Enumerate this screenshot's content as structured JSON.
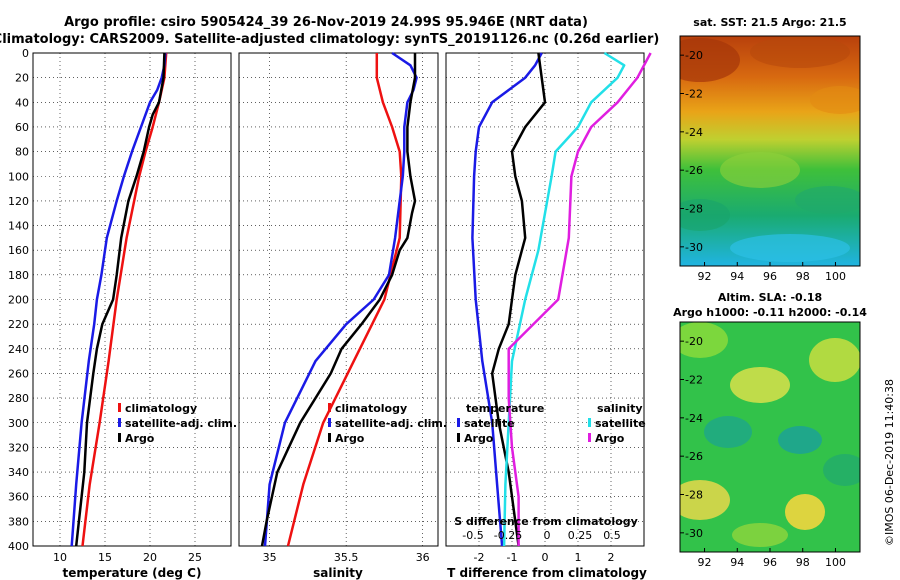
{
  "header": {
    "line1": "Argo profile: csiro 5905424_39 26-Nov-2019 24.99S 95.946E (NRT data)",
    "line2": "Climatology: CARS2009. Satellite-adjusted climatology: synTS_20191126.nc (0.26d earlier)"
  },
  "colors": {
    "climatology": "#ee1111",
    "satellite": "#1a1ae6",
    "argo": "#000000",
    "salinity_satellite": "#22e0e8",
    "salinity_argo": "#e01ee0"
  },
  "sst_panel": {
    "title": "sat. SST: 21.5 Argo: 21.5"
  },
  "sla_panel": {
    "title1": "Altim. SLA: -0.18",
    "title2": "Argo h1000: -0.11 h2000: -0.14"
  },
  "credit": "©IMOS 06-Dec-2019 11:40:38",
  "chart_data": [
    {
      "type": "line",
      "id": "temperature",
      "xlabel": "temperature (deg C)",
      "ylabel": "depth",
      "xlim": [
        7,
        29
      ],
      "ylim": [
        400,
        0
      ],
      "xticks": [
        10,
        15,
        20,
        25
      ],
      "yticks": [
        0,
        20,
        40,
        60,
        80,
        100,
        120,
        140,
        160,
        180,
        200,
        220,
        240,
        260,
        280,
        300,
        320,
        340,
        360,
        380,
        400
      ],
      "legend": [
        "climatology",
        "satellite-adj. clim.",
        "Argo"
      ],
      "series": [
        {
          "name": "climatology",
          "depth": [
            0,
            20,
            40,
            60,
            80,
            100,
            150,
            200,
            250,
            300,
            350,
            400
          ],
          "values": [
            21.8,
            21.6,
            21.0,
            20.3,
            19.5,
            18.8,
            17.4,
            16.3,
            15.4,
            14.4,
            13.3,
            12.5
          ]
        },
        {
          "name": "satellite-adj. clim.",
          "depth": [
            0,
            10,
            20,
            30,
            40,
            60,
            80,
            100,
            120,
            150,
            180,
            200,
            220,
            250,
            300,
            350,
            400
          ],
          "values": [
            21.7,
            21.6,
            21.3,
            20.8,
            20.0,
            19.0,
            18.0,
            17.1,
            16.3,
            15.2,
            14.6,
            14.1,
            13.8,
            13.2,
            12.4,
            11.8,
            11.3
          ]
        },
        {
          "name": "Argo",
          "depth": [
            0,
            20,
            40,
            50,
            60,
            80,
            100,
            120,
            150,
            180,
            200,
            220,
            240,
            260,
            300,
            340,
            380,
            400
          ],
          "values": [
            21.6,
            21.5,
            21.0,
            20.3,
            19.9,
            19.3,
            18.5,
            17.6,
            16.8,
            16.3,
            15.9,
            14.7,
            14.1,
            13.7,
            13.0,
            12.7,
            12.1,
            11.8
          ]
        }
      ]
    },
    {
      "type": "line",
      "id": "salinity",
      "xlabel": "salinity",
      "ylabel": "depth",
      "xlim": [
        34.8,
        36.1
      ],
      "ylim": [
        400,
        0
      ],
      "xticks": [
        35,
        35.5,
        36
      ],
      "yticks": [
        0,
        20,
        40,
        60,
        80,
        100,
        120,
        140,
        160,
        180,
        200,
        220,
        240,
        260,
        280,
        300,
        320,
        340,
        360,
        380,
        400
      ],
      "legend": [
        "climatology",
        "satellite-adj. clim.",
        "Argo"
      ],
      "series": [
        {
          "name": "climatology",
          "depth": [
            0,
            20,
            40,
            60,
            80,
            100,
            150,
            200,
            250,
            300,
            350,
            400
          ],
          "values": [
            35.7,
            35.7,
            35.74,
            35.8,
            35.85,
            35.86,
            35.85,
            35.75,
            35.55,
            35.35,
            35.22,
            35.12
          ]
        },
        {
          "name": "satellite-adj. clim.",
          "depth": [
            0,
            10,
            20,
            30,
            40,
            60,
            80,
            100,
            120,
            150,
            180,
            200,
            220,
            250,
            300,
            350,
            400
          ],
          "values": [
            35.8,
            35.92,
            35.96,
            35.94,
            35.9,
            35.88,
            35.88,
            35.87,
            35.85,
            35.82,
            35.78,
            35.68,
            35.5,
            35.3,
            35.1,
            35.0,
            34.97
          ]
        },
        {
          "name": "Argo",
          "depth": [
            0,
            20,
            40,
            60,
            80,
            100,
            120,
            130,
            150,
            160,
            180,
            200,
            220,
            240,
            260,
            300,
            340,
            380,
            400
          ],
          "values": [
            35.95,
            35.95,
            35.92,
            35.9,
            35.9,
            35.92,
            35.95,
            35.93,
            35.9,
            35.85,
            35.8,
            35.72,
            35.6,
            35.47,
            35.4,
            35.2,
            35.05,
            34.98,
            34.95
          ]
        }
      ]
    },
    {
      "type": "line",
      "id": "difference",
      "xlabel": "T difference from climatology",
      "x2label": "S difference from climatology",
      "xlim": [
        -3,
        3
      ],
      "ylim": [
        400,
        0
      ],
      "xticks": [
        -2,
        -1,
        0,
        1,
        2
      ],
      "x2ticks": [
        -0.5,
        -0.25,
        0,
        0.25,
        0.5
      ],
      "yticks": [
        0,
        20,
        40,
        60,
        80,
        100,
        120,
        140,
        160,
        180,
        200,
        220,
        240,
        260,
        280,
        300,
        320,
        340,
        360,
        380,
        400
      ],
      "legend_temperature_title": "temperature",
      "legend_salinity_title": "salinity",
      "legend_temperature": [
        "satellite",
        "Argo"
      ],
      "legend_salinity": [
        "satellite",
        "Argo"
      ],
      "series": [
        {
          "name": "temperature satellite",
          "depth": [
            0,
            10,
            20,
            30,
            40,
            60,
            80,
            100,
            150,
            200,
            250,
            300,
            350,
            400
          ],
          "values": [
            -0.1,
            -0.3,
            -0.6,
            -1.1,
            -1.6,
            -2.0,
            -2.1,
            -2.15,
            -2.2,
            -2.1,
            -1.9,
            -1.6,
            -1.45,
            -1.3
          ]
        },
        {
          "name": "temperature Argo",
          "depth": [
            0,
            20,
            40,
            60,
            80,
            100,
            120,
            150,
            180,
            200,
            220,
            240,
            260,
            300,
            340,
            380,
            400
          ],
          "values": [
            -0.2,
            -0.1,
            0.0,
            -0.6,
            -1.0,
            -0.9,
            -0.7,
            -0.6,
            -0.9,
            -1.0,
            -1.1,
            -1.4,
            -1.6,
            -1.4,
            -1.1,
            -0.9,
            -0.8
          ]
        },
        {
          "name": "salinity satellite",
          "depth": [
            0,
            10,
            20,
            40,
            60,
            80,
            100,
            130,
            160,
            200,
            250,
            300,
            350,
            400
          ],
          "values": [
            0.45,
            0.6,
            0.55,
            0.35,
            0.25,
            0.08,
            0.05,
            0.0,
            -0.05,
            -0.15,
            -0.25,
            -0.3,
            -0.35,
            -0.37
          ]
        },
        {
          "name": "salinity Argo",
          "depth": [
            0,
            20,
            40,
            60,
            80,
            100,
            150,
            200,
            240,
            280,
            320,
            360,
            400
          ],
          "values": [
            0.8,
            0.7,
            0.55,
            0.35,
            0.25,
            0.2,
            0.18,
            0.1,
            -0.3,
            -0.3,
            -0.25,
            -0.2,
            -0.2
          ]
        }
      ]
    },
    {
      "type": "heatmap",
      "id": "sst-map",
      "title": "sat. SST: 21.5 Argo: 21.5",
      "xticks": [
        92,
        94,
        96,
        98,
        100
      ],
      "yticks": [
        -20,
        -22,
        -24,
        -26,
        -28,
        -30
      ],
      "xlim": [
        90.5,
        101.5
      ],
      "ylim": [
        -31,
        -19
      ]
    },
    {
      "type": "heatmap",
      "id": "sla-map",
      "title": "Altim. SLA: -0.18",
      "subtitle": "Argo h1000: -0.11 h2000: -0.14",
      "xticks": [
        92,
        94,
        96,
        98,
        100
      ],
      "yticks": [
        -20,
        -22,
        -24,
        -26,
        -28,
        -30
      ],
      "xlim": [
        90.5,
        101.5
      ],
      "ylim": [
        -31,
        -19
      ]
    }
  ]
}
